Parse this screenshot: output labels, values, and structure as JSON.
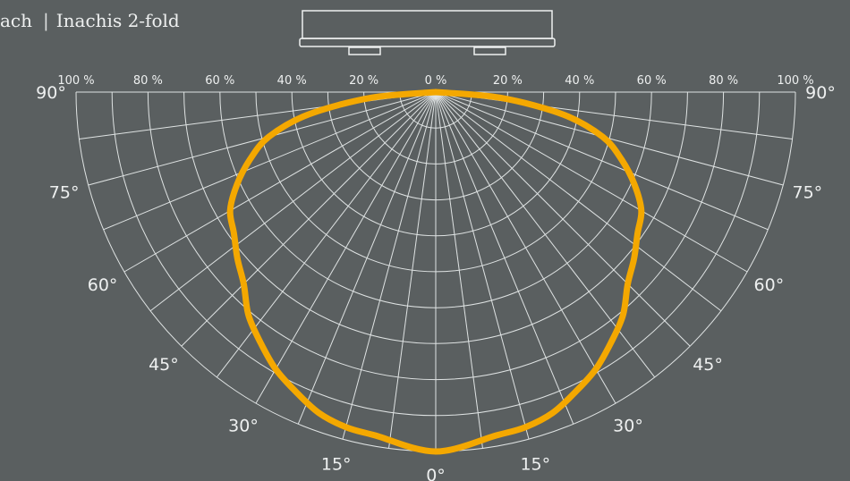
{
  "header": {
    "brand_fragment": "ach",
    "separator": "|",
    "product": "Inachis 2-fold"
  },
  "chart_data": {
    "type": "polar",
    "subtype": "luminous-intensity-distribution",
    "radial_ticks": [
      "100 %",
      "80 %",
      "60 %",
      "40 %",
      "20 %",
      "0 %",
      "20 %",
      "40 %",
      "60 %",
      "80 %",
      "100 %"
    ],
    "angle_labels_left": [
      "90°",
      "75°",
      "60°",
      "45°",
      "30°",
      "15°"
    ],
    "angle_labels_right": [
      "90°",
      "75°",
      "60°",
      "45°",
      "30°",
      "15°"
    ],
    "angle_label_bottom": "0°",
    "radial_max_percent": 100,
    "grid_rings_percent": [
      10,
      20,
      30,
      40,
      50,
      60,
      70,
      80,
      90,
      100
    ],
    "grid_spoke_step_deg": 7.5,
    "series": [
      {
        "color": "#f4a800",
        "angles_deg": [
          0,
          10,
          15,
          20,
          25,
          30,
          35,
          40,
          45,
          50,
          55,
          60,
          65,
          70,
          75,
          80,
          85,
          90
        ],
        "values_percent": [
          100,
          97,
          96.5,
          95,
          92,
          89,
          85,
          81,
          75.5,
          72,
          68.5,
          66,
          61,
          55,
          48,
          36,
          18,
          0
        ]
      }
    ],
    "colors": {
      "background": "#5a5f60",
      "grid": "#dfe3e3",
      "curve": "#f4a800"
    }
  }
}
